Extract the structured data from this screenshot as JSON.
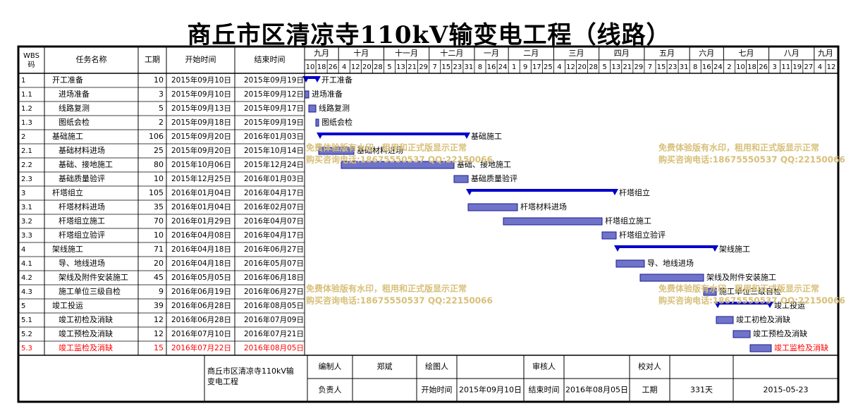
{
  "title": "商丘市区清凉寺110kV输变电工程（线路）",
  "columns": {
    "wbs": "WBS\n码",
    "name": "任务名称",
    "duration": "工期",
    "start": "开始时间",
    "end": "结束时间"
  },
  "timeline": {
    "months": [
      "九月",
      "十月",
      "十一月",
      "十二月",
      "一月",
      "二月",
      "三月",
      "四月",
      "五月",
      "六月",
      "七月",
      "八月",
      "九月"
    ],
    "days": [
      "10",
      "18",
      "26",
      "4",
      "12",
      "20",
      "28",
      "5",
      "13",
      "21",
      "29",
      "7",
      "15",
      "23",
      "31",
      "8",
      "16",
      "24",
      "1",
      "9",
      "17",
      "25",
      "4",
      "12",
      "20",
      "28",
      "5",
      "13",
      "21",
      "29",
      "7",
      "15",
      "23",
      "31",
      "8",
      "16",
      "24",
      "2",
      "10",
      "18",
      "26",
      "3",
      "11",
      "19",
      "27",
      "4",
      "12"
    ]
  },
  "tasks": [
    {
      "wbs": "1",
      "name": "开工准备",
      "duration": "10",
      "start": "2015年09月10日",
      "end": "2015年09月19日",
      "summary": true,
      "level": 0
    },
    {
      "wbs": "1.1",
      "name": "进场准备",
      "duration": "3",
      "start": "2015年09月10日",
      "end": "2015年09月12日",
      "summary": false,
      "level": 1
    },
    {
      "wbs": "1.2",
      "name": "线路复测",
      "duration": "5",
      "start": "2015年09月13日",
      "end": "2015年09月17日",
      "summary": false,
      "level": 1
    },
    {
      "wbs": "1.3",
      "name": "图纸会检",
      "duration": "2",
      "start": "2015年09月18日",
      "end": "2015年09月19日",
      "summary": false,
      "level": 1
    },
    {
      "wbs": "2",
      "name": "基础施工",
      "duration": "106",
      "start": "2015年09月20日",
      "end": "2016年01月03日",
      "summary": true,
      "level": 0
    },
    {
      "wbs": "2.1",
      "name": "基础材料进场",
      "duration": "25",
      "start": "2015年09月20日",
      "end": "2015年10月14日",
      "summary": false,
      "level": 1
    },
    {
      "wbs": "2.2",
      "name": "基础、接地施工",
      "duration": "80",
      "start": "2015年10月06日",
      "end": "2015年12月24日",
      "summary": false,
      "level": 1
    },
    {
      "wbs": "2.3",
      "name": "基础质量验评",
      "duration": "10",
      "start": "2015年12月25日",
      "end": "2016年01月03日",
      "summary": false,
      "level": 1
    },
    {
      "wbs": "3",
      "name": "杆塔组立",
      "duration": "105",
      "start": "2016年01月04日",
      "end": "2016年04月17日",
      "summary": true,
      "level": 0
    },
    {
      "wbs": "3.1",
      "name": "杆塔材料进场",
      "duration": "35",
      "start": "2016年01月04日",
      "end": "2016年02月07日",
      "summary": false,
      "level": 1
    },
    {
      "wbs": "3.2",
      "name": "杆塔组立施工",
      "duration": "70",
      "start": "2016年01月29日",
      "end": "2016年04月07日",
      "summary": false,
      "level": 1
    },
    {
      "wbs": "3.3",
      "name": "杆塔组立验评",
      "duration": "10",
      "start": "2016年04月08日",
      "end": "2016年04月17日",
      "summary": false,
      "level": 1
    },
    {
      "wbs": "4",
      "name": "架线施工",
      "duration": "71",
      "start": "2016年04月18日",
      "end": "2016年06月27日",
      "summary": true,
      "level": 0
    },
    {
      "wbs": "4.1",
      "name": "导、地线进场",
      "duration": "20",
      "start": "2016年04月18日",
      "end": "2016年05月07日",
      "summary": false,
      "level": 1
    },
    {
      "wbs": "4.2",
      "name": "架线及附件安装施工",
      "duration": "45",
      "start": "2016年05月05日",
      "end": "2016年06月18日",
      "summary": false,
      "level": 1
    },
    {
      "wbs": "4.3",
      "name": "施工单位三级自检",
      "duration": "9",
      "start": "2016年06月19日",
      "end": "2016年06月27日",
      "summary": false,
      "level": 1
    },
    {
      "wbs": "5",
      "name": "竣工投运",
      "duration": "39",
      "start": "2016年06月28日",
      "end": "2016年08月05日",
      "summary": true,
      "level": 0
    },
    {
      "wbs": "5.1",
      "name": "竣工初检及消缺",
      "duration": "12",
      "start": "2016年06月28日",
      "end": "2016年07月09日",
      "summary": false,
      "level": 1
    },
    {
      "wbs": "5.2",
      "name": "竣工预检及消缺",
      "duration": "12",
      "start": "2016年07月10日",
      "end": "2016年07月21日",
      "summary": false,
      "level": 1
    },
    {
      "wbs": "5.3",
      "name": "竣工监检及消缺",
      "duration": "15",
      "start": "2016年07月22日",
      "end": "2016年08月05日",
      "summary": false,
      "level": 1,
      "highlight": true
    }
  ],
  "chart_data": {
    "type": "gantt",
    "title": "商丘市区清凉寺110kV输变电工程（线路）",
    "x_axis": {
      "min": "2015-09-10",
      "max": "2016-09-12",
      "unit": "date"
    },
    "series": [
      {
        "task": "开工准备",
        "start": "2015-09-10",
        "end": "2015-09-19",
        "summary": true
      },
      {
        "task": "进场准备",
        "start": "2015-09-10",
        "end": "2015-09-12"
      },
      {
        "task": "线路复测",
        "start": "2015-09-13",
        "end": "2015-09-17"
      },
      {
        "task": "图纸会检",
        "start": "2015-09-18",
        "end": "2015-09-19"
      },
      {
        "task": "基础施工",
        "start": "2015-09-20",
        "end": "2016-01-03",
        "summary": true
      },
      {
        "task": "基础材料进场",
        "start": "2015-09-20",
        "end": "2015-10-14"
      },
      {
        "task": "基础、接地施工",
        "start": "2015-10-06",
        "end": "2015-12-24"
      },
      {
        "task": "基础质量验评",
        "start": "2015-12-25",
        "end": "2016-01-03"
      },
      {
        "task": "杆塔组立",
        "start": "2016-01-04",
        "end": "2016-04-17",
        "summary": true
      },
      {
        "task": "杆塔材料进场",
        "start": "2016-01-04",
        "end": "2016-02-07"
      },
      {
        "task": "杆塔组立施工",
        "start": "2016-01-29",
        "end": "2016-04-07"
      },
      {
        "task": "杆塔组立验评",
        "start": "2016-04-08",
        "end": "2016-04-17"
      },
      {
        "task": "架线施工",
        "start": "2016-04-18",
        "end": "2016-06-27",
        "summary": true
      },
      {
        "task": "导、地线进场",
        "start": "2016-04-18",
        "end": "2016-05-07"
      },
      {
        "task": "架线及附件安装施工",
        "start": "2016-05-05",
        "end": "2016-06-18"
      },
      {
        "task": "施工单位三级自检",
        "start": "2016-06-19",
        "end": "2016-06-27"
      },
      {
        "task": "竣工投运",
        "start": "2016-06-28",
        "end": "2016-08-05",
        "summary": true
      },
      {
        "task": "竣工初检及消缺",
        "start": "2016-06-28",
        "end": "2016-07-09"
      },
      {
        "task": "竣工预检及消缺",
        "start": "2016-07-10",
        "end": "2016-07-21"
      },
      {
        "task": "竣工监检及消缺",
        "start": "2016-07-22",
        "end": "2016-08-05"
      }
    ]
  },
  "footer": {
    "project_name": "商丘市区清凉寺110kV输变电工程",
    "editor_label": "编制人",
    "editor": "郑斌",
    "drafter_label": "绘图人",
    "drafter": "",
    "reviewer_label": "审核人",
    "reviewer": "",
    "proofreader_label": "校对人",
    "proofreader": "",
    "owner_label": "负责人",
    "owner": "",
    "start_label": "开始时间",
    "start": "2015年09月10日",
    "end_label": "结束时间",
    "end": "2016年08月05日",
    "duration_label": "工期",
    "duration": "331天",
    "date": "2015-05-23"
  },
  "watermark": {
    "line1": "免费体验版有水印，租用和正式版显示正常",
    "line2": "购买咨询电话:18675550537 QQ:22150066"
  },
  "colors": {
    "bar_fill": "#6f74c8",
    "bar_stroke": "#1a1a99",
    "summary": "#0000cc",
    "highlight": "#ff0000",
    "grid": "#000000",
    "watermark": "#d8c07a"
  }
}
